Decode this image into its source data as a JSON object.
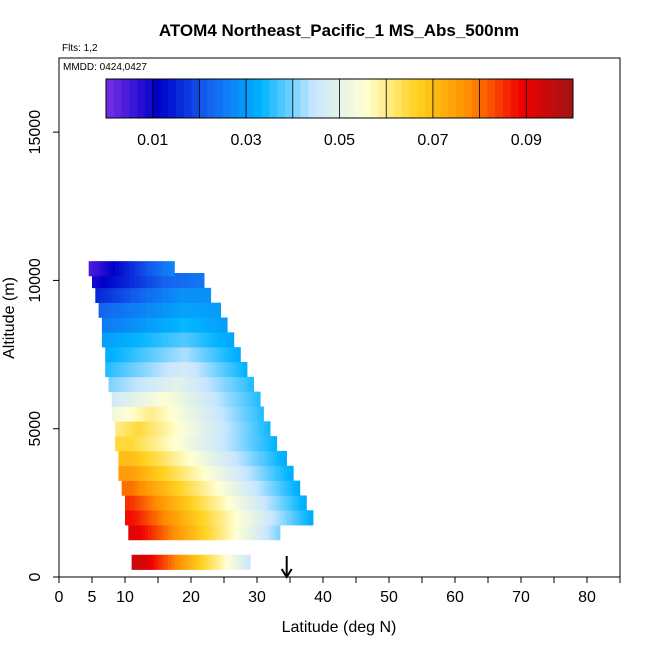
{
  "chart_data": {
    "type": "heatmap",
    "title": "ATOM4 Northeast_Pacific_1 MS_Abs_500nm",
    "subtitle_flights": "Flts: 1,2",
    "subtitle_dates": "MMDD: 0424,0427",
    "xlabel": "Latitude (deg N)",
    "ylabel": "Altitude (m)",
    "xlim": [
      0,
      85
    ],
    "ylim": [
      0,
      17500
    ],
    "x_ticks": [
      0,
      5,
      10,
      20,
      30,
      40,
      50,
      60,
      70,
      80
    ],
    "y_ticks": [
      0,
      5000,
      10000,
      15000
    ],
    "colorbar": {
      "range": [
        0,
        0.1
      ],
      "tick_values": [
        0.01,
        0.03,
        0.05,
        0.07,
        0.09
      ],
      "tick_labels": [
        "0.01",
        "0.03",
        "0.05",
        "0.07",
        "0.09"
      ],
      "colors": [
        "#7b2ee6",
        "#0000c8",
        "#1464f0",
        "#00b4ff",
        "#c8e6ff",
        "#ffffd2",
        "#ffd21e",
        "#ff8c00",
        "#f00000",
        "#a01414"
      ]
    },
    "arrow_latitude": 34.5,
    "layers": [
      {
        "alt": 500,
        "lat_min": 11,
        "lat_max": 29,
        "v_south": 0.095,
        "v_peak": 0.092,
        "peak_lat": 13,
        "v_north": 0.045
      },
      {
        "alt": 1500,
        "lat_min": 10.5,
        "lat_max": 33.5,
        "v_south": 0.092,
        "v_peak": 0.09,
        "peak_lat": 12,
        "v_north": 0.04
      },
      {
        "alt": 2000,
        "lat_min": 10,
        "lat_max": 38.5,
        "v_south": 0.088,
        "v_peak": 0.088,
        "peak_lat": 11,
        "v_north": 0.032
      },
      {
        "alt": 2500,
        "lat_min": 10,
        "lat_max": 37.5,
        "v_south": 0.085,
        "v_peak": 0.085,
        "peak_lat": 11,
        "v_north": 0.032
      },
      {
        "alt": 3000,
        "lat_min": 9.5,
        "lat_max": 36.5,
        "v_south": 0.08,
        "v_peak": 0.08,
        "peak_lat": 11,
        "v_north": 0.032
      },
      {
        "alt": 3500,
        "lat_min": 9,
        "lat_max": 35.5,
        "v_south": 0.075,
        "v_peak": 0.075,
        "peak_lat": 11,
        "v_north": 0.032
      },
      {
        "alt": 4000,
        "lat_min": 9,
        "lat_max": 34.5,
        "v_south": 0.07,
        "v_peak": 0.07,
        "peak_lat": 11,
        "v_north": 0.032
      },
      {
        "alt": 4500,
        "lat_min": 8.5,
        "lat_max": 33,
        "v_south": 0.065,
        "v_peak": 0.065,
        "peak_lat": 11,
        "v_north": 0.033
      },
      {
        "alt": 5000,
        "lat_min": 8.5,
        "lat_max": 32,
        "v_south": 0.06,
        "v_peak": 0.065,
        "peak_lat": 12,
        "v_north": 0.034
      },
      {
        "alt": 5500,
        "lat_min": 8,
        "lat_max": 31,
        "v_south": 0.052,
        "v_peak": 0.06,
        "peak_lat": 14,
        "v_north": 0.035
      },
      {
        "alt": 6000,
        "lat_min": 8,
        "lat_max": 30.5,
        "v_south": 0.046,
        "v_peak": 0.055,
        "peak_lat": 16,
        "v_north": 0.035
      },
      {
        "alt": 6500,
        "lat_min": 7.5,
        "lat_max": 29.5,
        "v_south": 0.04,
        "v_peak": 0.05,
        "peak_lat": 18,
        "v_north": 0.035
      },
      {
        "alt": 7000,
        "lat_min": 7,
        "lat_max": 28.5,
        "v_south": 0.035,
        "v_peak": 0.047,
        "peak_lat": 19,
        "v_north": 0.033
      },
      {
        "alt": 7500,
        "lat_min": 7,
        "lat_max": 27.5,
        "v_south": 0.032,
        "v_peak": 0.043,
        "peak_lat": 19,
        "v_north": 0.032
      },
      {
        "alt": 8000,
        "lat_min": 6.5,
        "lat_max": 26.5,
        "v_south": 0.03,
        "v_peak": 0.038,
        "peak_lat": 19,
        "v_north": 0.031
      },
      {
        "alt": 8500,
        "lat_min": 6.5,
        "lat_max": 25.5,
        "v_south": 0.025,
        "v_peak": 0.034,
        "peak_lat": 19,
        "v_north": 0.03
      },
      {
        "alt": 9000,
        "lat_min": 6,
        "lat_max": 24.5,
        "v_south": 0.022,
        "v_peak": 0.031,
        "peak_lat": 19,
        "v_north": 0.03
      },
      {
        "alt": 9500,
        "lat_min": 5.5,
        "lat_max": 23,
        "v_south": 0.015,
        "v_peak": 0.028,
        "peak_lat": 18,
        "v_north": 0.028
      },
      {
        "alt": 10000,
        "lat_min": 5,
        "lat_max": 22,
        "v_south": 0.009,
        "v_peak": 0.022,
        "peak_lat": 16,
        "v_north": 0.025
      },
      {
        "alt": 10400,
        "lat_min": 4.5,
        "lat_max": 17.5,
        "v_south": 0.004,
        "v_peak": 0.02,
        "peak_lat": 13,
        "v_north": 0.027
      }
    ]
  }
}
